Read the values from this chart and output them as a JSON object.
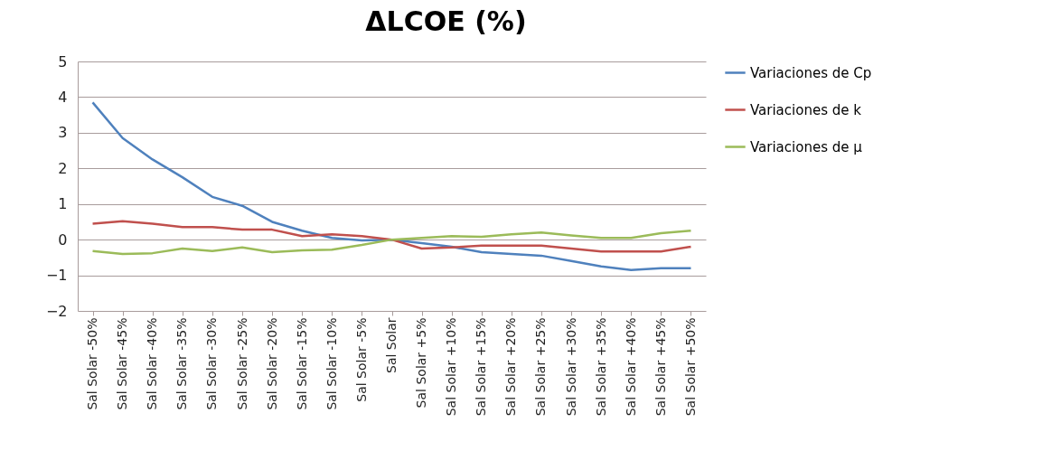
{
  "chart_data": {
    "type": "line",
    "title": "ΔLCOE (%)",
    "categories": [
      "Sal Solar -50%",
      "Sal Solar -45%",
      "Sal Solar -40%",
      "Sal Solar -35%",
      "Sal Solar -30%",
      "Sal Solar -25%",
      "Sal Solar -20%",
      "Sal Solar -15%",
      "Sal Solar -10%",
      "Sal Solar -5%",
      "Sal Solar",
      "Sal Solar +5%",
      "Sal Solar +10%",
      "Sal Solar +15%",
      "Sal Solar +20%",
      "Sal Solar +25%",
      "Sal Solar +30%",
      "Sal Solar +35%",
      "Sal Solar +40%",
      "Sal Solar +45%",
      "Sal Solar +50%"
    ],
    "series": [
      {
        "name": "Variaciones de Cp",
        "color": "#4f81bd",
        "values": [
          3.85,
          2.85,
          2.25,
          1.75,
          1.2,
          0.95,
          0.5,
          0.25,
          0.05,
          -0.02,
          0,
          -0.1,
          -0.2,
          -0.35,
          -0.4,
          -0.45,
          -0.6,
          -0.75,
          -0.85,
          -0.8,
          -0.8
        ]
      },
      {
        "name": "Variaciones de k",
        "color": "#c0504d",
        "values": [
          0.45,
          0.52,
          0.45,
          0.35,
          0.35,
          0.28,
          0.28,
          0.1,
          0.15,
          0.1,
          0,
          -0.25,
          -0.22,
          -0.17,
          -0.17,
          -0.17,
          -0.25,
          -0.33,
          -0.33,
          -0.33,
          -0.2
        ]
      },
      {
        "name": "Variaciones de μ",
        "color": "#9bbb59",
        "values": [
          -0.32,
          -0.4,
          -0.38,
          -0.25,
          -0.32,
          -0.22,
          -0.35,
          -0.3,
          -0.28,
          -0.15,
          0,
          0.05,
          0.1,
          0.08,
          0.15,
          0.2,
          0.12,
          0.05,
          0.05,
          0.18,
          0.25
        ]
      }
    ],
    "ylim": [
      -2,
      5
    ],
    "yticks": [
      -2,
      -1,
      0,
      1,
      2,
      3,
      4,
      5
    ],
    "grid": "y",
    "legend": "right",
    "marker": "none",
    "line_style": "solid"
  }
}
